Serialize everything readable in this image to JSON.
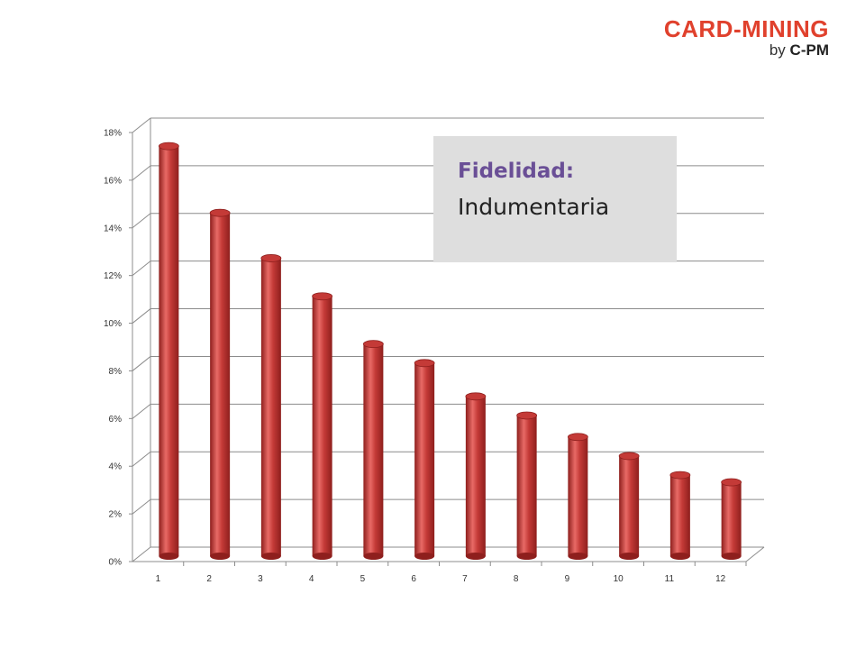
{
  "logo": {
    "main": "CARD-MINING",
    "by": "by",
    "brand": "C-PM"
  },
  "colors": {
    "bar": "#c43a37",
    "bar_highlight": "#e86a66",
    "bar_shadow": "#8e1f1d",
    "grid": "#8c8c8c",
    "title_accent": "#6a4f96",
    "title_box": "#dedede"
  },
  "chart_data": {
    "type": "bar",
    "style": "3d-cylinder",
    "title_line1": "Fidelidad:",
    "title_line2": "Indumentaria",
    "categories": [
      "1",
      "2",
      "3",
      "4",
      "5",
      "6",
      "7",
      "8",
      "9",
      "10",
      "11",
      "12"
    ],
    "values": [
      0.172,
      0.144,
      0.125,
      0.109,
      0.089,
      0.081,
      0.067,
      0.059,
      0.05,
      0.042,
      0.034,
      0.031
    ],
    "ylim": [
      0,
      0.18
    ],
    "yticks": [
      0,
      0.02,
      0.04,
      0.06,
      0.08,
      0.1,
      0.12,
      0.14,
      0.16,
      0.18
    ],
    "ytick_labels": [
      "0%",
      "2%",
      "4%",
      "6%",
      "8%",
      "10%",
      "12%",
      "14%",
      "16%",
      "18%"
    ],
    "xlabel": "",
    "ylabel": "",
    "grid": true,
    "legend": "none"
  }
}
